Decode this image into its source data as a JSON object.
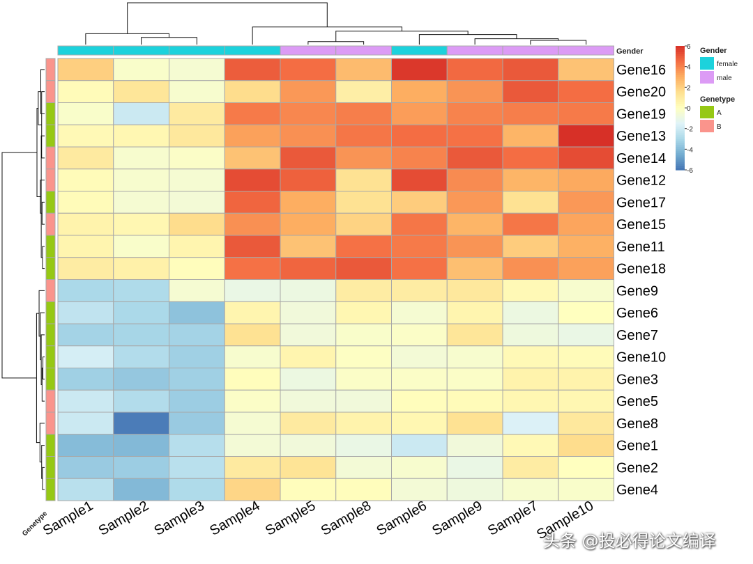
{
  "chart_data": {
    "type": "heatmap",
    "title": "",
    "columns": [
      "Sample1",
      "Sample2",
      "Sample3",
      "Sample4",
      "Sample5",
      "Sample8",
      "Sample6",
      "Sample9",
      "Sample7",
      "Sample10"
    ],
    "rows": [
      "Gene16",
      "Gene20",
      "Gene19",
      "Gene13",
      "Gene14",
      "Gene12",
      "Gene17",
      "Gene15",
      "Gene11",
      "Gene18",
      "Gene9",
      "Gene6",
      "Gene7",
      "Gene10",
      "Gene3",
      "Gene5",
      "Gene8",
      "Gene1",
      "Gene2",
      "Gene4"
    ],
    "values": [
      [
        2.0,
        -0.3,
        -0.5,
        4.9,
        4.5,
        2.6,
        5.8,
        4.6,
        5.0,
        2.4
      ],
      [
        0.2,
        1.2,
        -0.4,
        1.6,
        3.5,
        0.8,
        3.0,
        3.6,
        5.0,
        4.5
      ],
      [
        -0.3,
        -2.1,
        1.0,
        4.2,
        3.9,
        4.1,
        3.4,
        4.0,
        4.1,
        4.2
      ],
      [
        0.3,
        0.4,
        1.1,
        3.3,
        3.7,
        4.3,
        4.5,
        4.4,
        2.8,
        6.0
      ],
      [
        1.0,
        -0.4,
        -0.2,
        2.4,
        5.0,
        3.6,
        4.0,
        5.0,
        4.5,
        5.3
      ],
      [
        0.2,
        -0.4,
        -0.5,
        5.3,
        4.8,
        1.4,
        5.3,
        3.8,
        2.8,
        3.1
      ],
      [
        0.2,
        -0.5,
        -0.6,
        4.7,
        3.0,
        1.4,
        2.1,
        3.5,
        1.4,
        3.5
      ],
      [
        0.6,
        0.4,
        1.6,
        3.7,
        3.0,
        1.9,
        4.3,
        2.8,
        4.3,
        3.2
      ],
      [
        0.5,
        -0.3,
        0.5,
        5.0,
        2.4,
        4.4,
        4.2,
        3.6,
        2.1,
        2.9
      ],
      [
        0.9,
        0.7,
        0.1,
        4.4,
        4.7,
        5.0,
        4.4,
        2.5,
        3.7,
        3.3
      ],
      [
        -3.0,
        -2.9,
        -0.5,
        -1.0,
        -0.9,
        0.9,
        0.9,
        1.1,
        0.3,
        -0.4
      ],
      [
        -2.4,
        -3.0,
        -3.8,
        0.5,
        -0.7,
        0.4,
        -0.5,
        0.5,
        -0.9,
        0.0
      ],
      [
        -3.2,
        -3.1,
        -3.2,
        1.4,
        -0.7,
        -0.3,
        -0.2,
        1.2,
        -0.8,
        -1.0
      ],
      [
        -1.8,
        -2.8,
        -3.3,
        -0.4,
        0.5,
        -0.1,
        -0.6,
        -0.4,
        0.3,
        0.2
      ],
      [
        -3.3,
        -3.6,
        -3.3,
        0.1,
        -0.9,
        -0.2,
        -0.2,
        -0.2,
        0.6,
        0.6
      ],
      [
        -2.1,
        -2.8,
        -3.4,
        -0.2,
        -0.7,
        -0.7,
        0.1,
        0.2,
        0.4,
        0.4
      ],
      [
        -2.1,
        -5.8,
        -3.5,
        -0.5,
        1.0,
        0.6,
        0.4,
        1.4,
        -1.6,
        1.1
      ],
      [
        -4.0,
        -4.1,
        -2.7,
        -0.6,
        -0.7,
        -1.0,
        -2.1,
        -0.7,
        0.3,
        1.6
      ],
      [
        -3.5,
        -3.4,
        -2.6,
        1.0,
        1.3,
        -0.6,
        -0.4,
        -1.0,
        0.9,
        0.0
      ],
      [
        -2.6,
        -4.1,
        -2.9,
        1.8,
        0.1,
        0.1,
        -0.6,
        -0.8,
        -0.4,
        -0.3
      ]
    ],
    "color_scale": {
      "min": -6,
      "max": 6,
      "ticks": [
        6,
        4,
        2,
        0,
        -2,
        -4,
        -6
      ],
      "low_color": "#4575b4",
      "mid_color": "#ffffbf",
      "high_color": "#d73027"
    },
    "column_annotation": {
      "label": "Gender",
      "values": [
        "female",
        "female",
        "female",
        "female",
        "male",
        "male",
        "female",
        "male",
        "male",
        "male"
      ]
    },
    "row_annotation": {
      "label": "Genetype",
      "values": [
        "B",
        "B",
        "A",
        "A",
        "B",
        "B",
        "A",
        "B",
        "A",
        "A",
        "B",
        "A",
        "A",
        "A",
        "A",
        "B",
        "B",
        "A",
        "A",
        "A"
      ]
    },
    "legends": {
      "gender": {
        "title": "Gender",
        "items": [
          {
            "name": "female",
            "color": "#1cd2dc"
          },
          {
            "name": "male",
            "color": "#dc9bf5"
          }
        ]
      },
      "genetype": {
        "title": "Genetype",
        "items": [
          {
            "name": "A",
            "color": "#96c814"
          },
          {
            "name": "B",
            "color": "#fa948c"
          }
        ]
      }
    },
    "clustering": {
      "columns": {
        "merge": [
          [
            1,
            2
          ],
          [
            0,
            -1
          ],
          [
            4,
            5
          ],
          [
            8,
            9
          ],
          [
            -4,
            7
          ],
          [
            6,
            -5
          ],
          [
            -3,
            -6
          ],
          [
            3,
            -7
          ],
          [
            -2,
            -8
          ]
        ],
        "height": [
          0.17,
          0.26,
          0.07,
          0.1,
          0.14,
          0.24,
          0.32,
          0.42,
          1.0
        ]
      },
      "rows": {
        "merge": [
          [
            1,
            4
          ],
          [
            6,
            7
          ],
          [
            5,
            -2
          ],
          [
            8,
            9
          ],
          [
            -4,
            3
          ],
          [
            0,
            2
          ],
          [
            -1,
            -6
          ],
          [
            -3,
            -5
          ],
          [
            -8,
            -7
          ],
          [
            13,
            14
          ],
          [
            15,
            -10
          ],
          [
            18,
            19
          ],
          [
            12,
            -11
          ],
          [
            17,
            -12
          ],
          [
            11,
            -13
          ],
          [
            10,
            -15
          ],
          [
            16,
            -14
          ],
          [
            -16,
            -17
          ],
          [
            -9,
            -18
          ]
        ],
        "height": [
          0.07,
          0.06,
          0.1,
          0.05,
          0.08,
          0.09,
          0.15,
          0.14,
          0.18,
          0.04,
          0.06,
          0.05,
          0.08,
          0.07,
          0.1,
          0.13,
          0.11,
          0.19,
          1.0
        ]
      }
    }
  },
  "watermark": "头条 @投必得论文编译"
}
